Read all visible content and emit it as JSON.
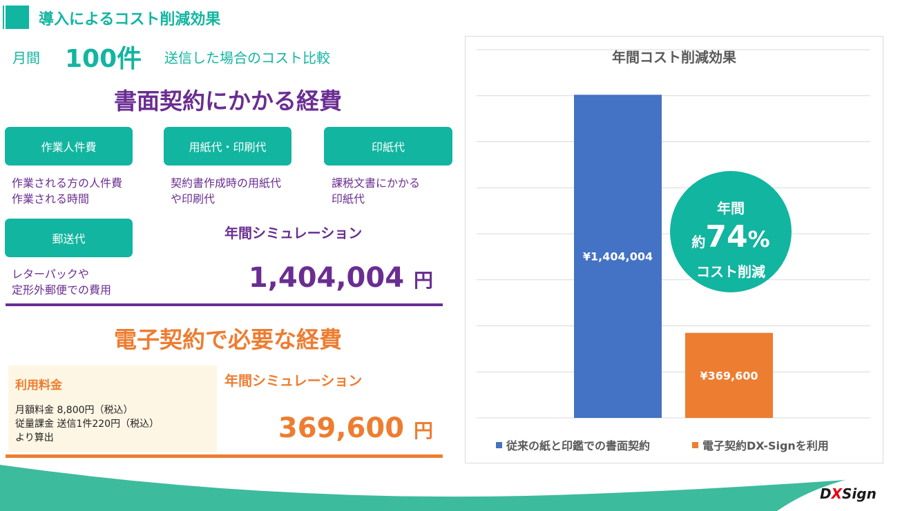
{
  "header": {
    "title": "導入によるコスト削減効果"
  },
  "monthly": {
    "prefix": "月間",
    "count": "100件",
    "suffix": "送信した場合のコスト比較"
  },
  "paper": {
    "heading": "書面契約にかかる経費",
    "categories": [
      {
        "label": "作業人件費",
        "desc_lines": [
          "作業される方の人件費",
          "作業される時間"
        ]
      },
      {
        "label": "用紙代・印刷代",
        "desc_lines": [
          "契約書作成時の用紙代",
          "や印刷代"
        ]
      },
      {
        "label": "印紙代",
        "desc_lines": [
          "課税文書にかかる",
          "印紙代"
        ]
      },
      {
        "label": "郵送代",
        "desc_lines": [
          "レターパックや",
          "定形外郵便での費用"
        ]
      }
    ],
    "sim_label": "年間シミュレーション",
    "sim_value": "1,404,004",
    "sim_unit": "円"
  },
  "electronic": {
    "heading": "電子契約で必要な経費",
    "fee_title": "利用料金",
    "fee_lines": [
      "月額料金 8,800円（税込）",
      "従量課金 送信1件220円（税込）",
      "より算出"
    ],
    "sim_label": "年間シミュレーション",
    "sim_value": "369,600",
    "sim_unit": "円"
  },
  "badge": {
    "line1": "年間",
    "prefix": "約",
    "percent_num": "74",
    "percent_sign": "%",
    "line3": "コスト削減"
  },
  "logo": {
    "d": "D",
    "x": "X",
    "rest": "Sign"
  },
  "colors": {
    "teal": "#12b5a0",
    "purple": "#6a2d91",
    "orange": "#ed7d31",
    "blue": "#4472c4"
  },
  "chart_data": {
    "type": "bar",
    "title": "年間コスト削減効果",
    "series": [
      {
        "name": "従来の紙と印鑑での書面契約",
        "values": [
          1404004
        ],
        "label": "¥1,404,004",
        "color": "#4472c4"
      },
      {
        "name": "電子契約DX-Signを利用",
        "values": [
          369600
        ],
        "label": "¥369,600",
        "color": "#ed7d31"
      }
    ],
    "ylim": [
      0,
      1600000
    ],
    "grid": true,
    "legend": "bottom"
  }
}
